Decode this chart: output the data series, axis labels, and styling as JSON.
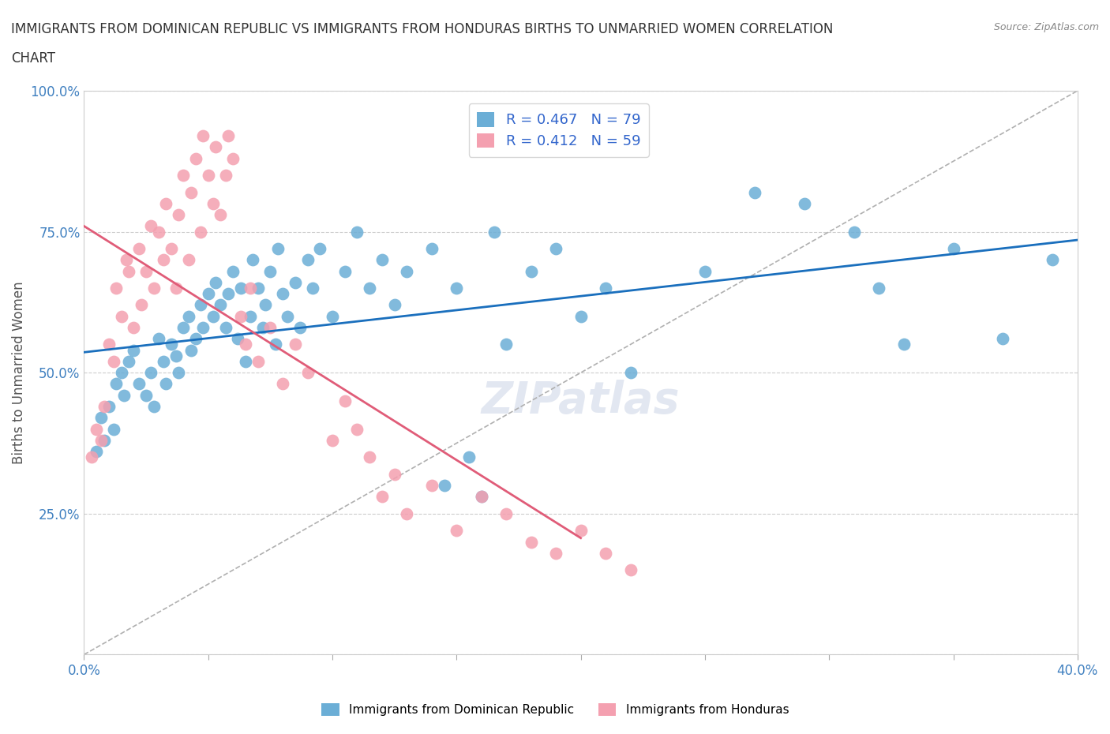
{
  "title_line1": "IMMIGRANTS FROM DOMINICAN REPUBLIC VS IMMIGRANTS FROM HONDURAS BIRTHS TO UNMARRIED WOMEN CORRELATION",
  "title_line2": "CHART",
  "source": "Source: ZipAtlas.com",
  "ylabel": "Births to Unmarried Women",
  "xlim": [
    0.0,
    0.4
  ],
  "ylim": [
    0.0,
    1.0
  ],
  "xticks": [
    0.0,
    0.05,
    0.1,
    0.15,
    0.2,
    0.25,
    0.3,
    0.35,
    0.4
  ],
  "yticks": [
    0.0,
    0.25,
    0.5,
    0.75,
    1.0
  ],
  "blue_color": "#6baed6",
  "pink_color": "#f4a0b0",
  "blue_line_color": "#1a6fbd",
  "pink_line_color": "#e05c78",
  "gray_dash_color": "#b0b0b0",
  "R_blue": 0.467,
  "N_blue": 79,
  "R_pink": 0.412,
  "N_pink": 59,
  "legend_label_blue": "Immigrants from Dominican Republic",
  "legend_label_pink": "Immigrants from Honduras",
  "watermark": "ZIPatlas",
  "blue_dots": [
    [
      0.005,
      0.36
    ],
    [
      0.007,
      0.42
    ],
    [
      0.008,
      0.38
    ],
    [
      0.01,
      0.44
    ],
    [
      0.012,
      0.4
    ],
    [
      0.013,
      0.48
    ],
    [
      0.015,
      0.5
    ],
    [
      0.016,
      0.46
    ],
    [
      0.018,
      0.52
    ],
    [
      0.02,
      0.54
    ],
    [
      0.022,
      0.48
    ],
    [
      0.025,
      0.46
    ],
    [
      0.027,
      0.5
    ],
    [
      0.028,
      0.44
    ],
    [
      0.03,
      0.56
    ],
    [
      0.032,
      0.52
    ],
    [
      0.033,
      0.48
    ],
    [
      0.035,
      0.55
    ],
    [
      0.037,
      0.53
    ],
    [
      0.038,
      0.5
    ],
    [
      0.04,
      0.58
    ],
    [
      0.042,
      0.6
    ],
    [
      0.043,
      0.54
    ],
    [
      0.045,
      0.56
    ],
    [
      0.047,
      0.62
    ],
    [
      0.048,
      0.58
    ],
    [
      0.05,
      0.64
    ],
    [
      0.052,
      0.6
    ],
    [
      0.053,
      0.66
    ],
    [
      0.055,
      0.62
    ],
    [
      0.057,
      0.58
    ],
    [
      0.058,
      0.64
    ],
    [
      0.06,
      0.68
    ],
    [
      0.062,
      0.56
    ],
    [
      0.063,
      0.65
    ],
    [
      0.065,
      0.52
    ],
    [
      0.067,
      0.6
    ],
    [
      0.068,
      0.7
    ],
    [
      0.07,
      0.65
    ],
    [
      0.072,
      0.58
    ],
    [
      0.073,
      0.62
    ],
    [
      0.075,
      0.68
    ],
    [
      0.077,
      0.55
    ],
    [
      0.078,
      0.72
    ],
    [
      0.08,
      0.64
    ],
    [
      0.082,
      0.6
    ],
    [
      0.085,
      0.66
    ],
    [
      0.087,
      0.58
    ],
    [
      0.09,
      0.7
    ],
    [
      0.092,
      0.65
    ],
    [
      0.095,
      0.72
    ],
    [
      0.1,
      0.6
    ],
    [
      0.105,
      0.68
    ],
    [
      0.11,
      0.75
    ],
    [
      0.115,
      0.65
    ],
    [
      0.12,
      0.7
    ],
    [
      0.125,
      0.62
    ],
    [
      0.13,
      0.68
    ],
    [
      0.14,
      0.72
    ],
    [
      0.145,
      0.3
    ],
    [
      0.15,
      0.65
    ],
    [
      0.155,
      0.35
    ],
    [
      0.16,
      0.28
    ],
    [
      0.165,
      0.75
    ],
    [
      0.17,
      0.55
    ],
    [
      0.18,
      0.68
    ],
    [
      0.19,
      0.72
    ],
    [
      0.2,
      0.6
    ],
    [
      0.21,
      0.65
    ],
    [
      0.22,
      0.5
    ],
    [
      0.25,
      0.68
    ],
    [
      0.27,
      0.82
    ],
    [
      0.29,
      0.8
    ],
    [
      0.31,
      0.75
    ],
    [
      0.32,
      0.65
    ],
    [
      0.33,
      0.55
    ],
    [
      0.35,
      0.72
    ],
    [
      0.37,
      0.56
    ],
    [
      0.39,
      0.7
    ]
  ],
  "pink_dots": [
    [
      0.003,
      0.35
    ],
    [
      0.005,
      0.4
    ],
    [
      0.007,
      0.38
    ],
    [
      0.008,
      0.44
    ],
    [
      0.01,
      0.55
    ],
    [
      0.012,
      0.52
    ],
    [
      0.013,
      0.65
    ],
    [
      0.015,
      0.6
    ],
    [
      0.017,
      0.7
    ],
    [
      0.018,
      0.68
    ],
    [
      0.02,
      0.58
    ],
    [
      0.022,
      0.72
    ],
    [
      0.023,
      0.62
    ],
    [
      0.025,
      0.68
    ],
    [
      0.027,
      0.76
    ],
    [
      0.028,
      0.65
    ],
    [
      0.03,
      0.75
    ],
    [
      0.032,
      0.7
    ],
    [
      0.033,
      0.8
    ],
    [
      0.035,
      0.72
    ],
    [
      0.037,
      0.65
    ],
    [
      0.038,
      0.78
    ],
    [
      0.04,
      0.85
    ],
    [
      0.042,
      0.7
    ],
    [
      0.043,
      0.82
    ],
    [
      0.045,
      0.88
    ],
    [
      0.047,
      0.75
    ],
    [
      0.048,
      0.92
    ],
    [
      0.05,
      0.85
    ],
    [
      0.052,
      0.8
    ],
    [
      0.053,
      0.9
    ],
    [
      0.055,
      0.78
    ],
    [
      0.057,
      0.85
    ],
    [
      0.058,
      0.92
    ],
    [
      0.06,
      0.88
    ],
    [
      0.063,
      0.6
    ],
    [
      0.065,
      0.55
    ],
    [
      0.067,
      0.65
    ],
    [
      0.07,
      0.52
    ],
    [
      0.075,
      0.58
    ],
    [
      0.08,
      0.48
    ],
    [
      0.085,
      0.55
    ],
    [
      0.09,
      0.5
    ],
    [
      0.1,
      0.38
    ],
    [
      0.105,
      0.45
    ],
    [
      0.11,
      0.4
    ],
    [
      0.115,
      0.35
    ],
    [
      0.12,
      0.28
    ],
    [
      0.125,
      0.32
    ],
    [
      0.13,
      0.25
    ],
    [
      0.14,
      0.3
    ],
    [
      0.15,
      0.22
    ],
    [
      0.16,
      0.28
    ],
    [
      0.17,
      0.25
    ],
    [
      0.18,
      0.2
    ],
    [
      0.19,
      0.18
    ],
    [
      0.2,
      0.22
    ],
    [
      0.21,
      0.18
    ],
    [
      0.22,
      0.15
    ]
  ]
}
